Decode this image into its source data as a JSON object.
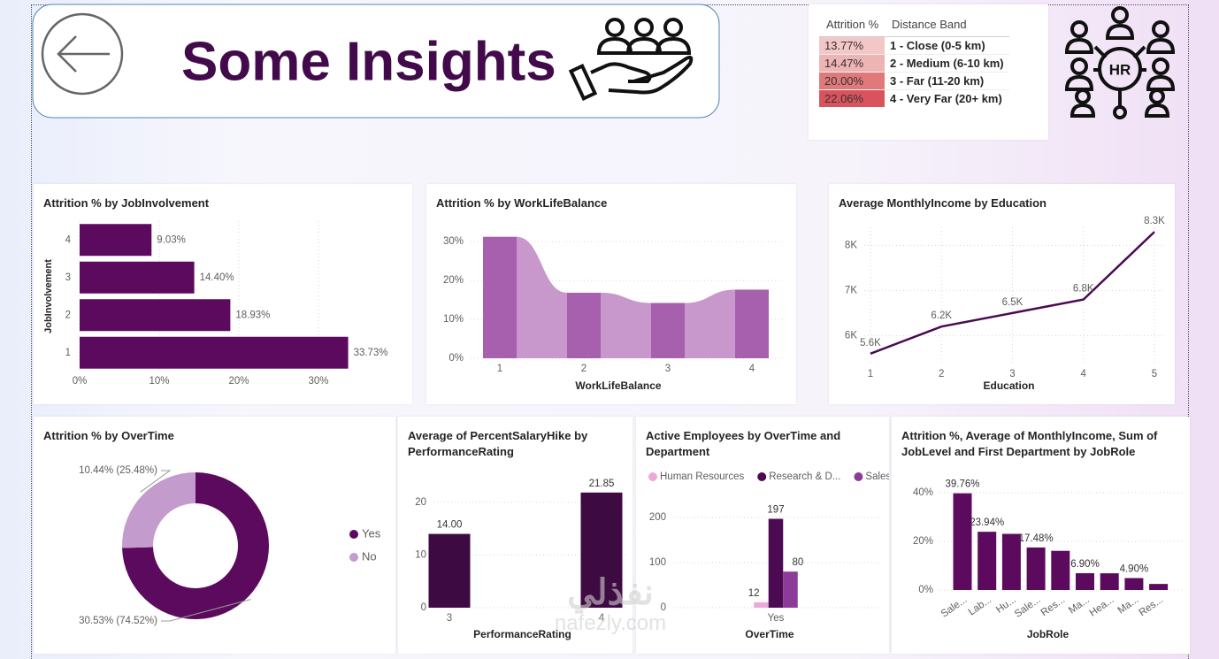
{
  "header": {
    "title": "Some Insights",
    "icon_text": "HR"
  },
  "table": {
    "columns": [
      "Attrition %",
      "Distance Band"
    ],
    "rows": [
      [
        "13.77%",
        "1 - Close (0-5 km)"
      ],
      [
        "14.47%",
        "2 - Medium (6-10 km)"
      ],
      [
        "20.00%",
        "3 - Far (11-20 km)"
      ],
      [
        "22.06%",
        "4 - Very Far (20+ km)"
      ]
    ],
    "row_colors": [
      "#f4c7c7",
      "#eeb3b3",
      "#e07a7a",
      "#d9535d"
    ]
  },
  "watermark": [
    "نفذلي",
    "nafezly.com"
  ],
  "chart_data": [
    {
      "type": "bar",
      "orientation": "horizontal",
      "title": "Attrition % by JobInvolvement",
      "y_label": "JobInvolvement",
      "categories": [
        "1",
        "2",
        "3",
        "4"
      ],
      "values": [
        33.73,
        18.93,
        14.4,
        9.03
      ],
      "value_labels": [
        "33.73%",
        "18.93%",
        "14.40%",
        "9.03%"
      ],
      "color": "#5c0a5e",
      "xlim": [
        0,
        40
      ],
      "xticks": [
        {
          "value": 0,
          "label": "0%"
        },
        {
          "value": 10,
          "label": "10%"
        },
        {
          "value": 20,
          "label": "20%"
        },
        {
          "value": 30,
          "label": "30%"
        }
      ],
      "grid": true
    },
    {
      "type": "ribbon",
      "title": "Attrition % by WorkLifeBalance",
      "x_label": "WorkLifeBalance",
      "categories": [
        "1",
        "2",
        "3",
        "4"
      ],
      "values": [
        31.25,
        16.86,
        14.22,
        17.65
      ],
      "color": "#a660ae",
      "ribbon_color": "#c897cb",
      "ylim": [
        0,
        33
      ],
      "yticks": [
        {
          "value": 0,
          "label": "0%"
        },
        {
          "value": 10,
          "label": "10%"
        },
        {
          "value": 20,
          "label": "20%"
        },
        {
          "value": 30,
          "label": "30%"
        }
      ],
      "grid": true
    },
    {
      "type": "line",
      "title": "Average MonthlyIncome by Education",
      "x_label": "Education",
      "categories": [
        "1",
        "2",
        "3",
        "4",
        "5"
      ],
      "values": [
        5600,
        6200,
        6500,
        6800,
        8300
      ],
      "value_labels": [
        "5.6K",
        "6.2K",
        "6.5K",
        "6.8K",
        "8.3K"
      ],
      "color": "#4a0a52",
      "ylim": [
        5400,
        8400
      ],
      "yticks": [
        {
          "value": 6000,
          "label": "6K"
        },
        {
          "value": 7000,
          "label": "7K"
        },
        {
          "value": 8000,
          "label": "8K"
        }
      ],
      "grid": true
    },
    {
      "type": "donut",
      "title": "Attrition % by OverTime",
      "categories": [
        "Yes",
        "No"
      ],
      "values": [
        74.52,
        25.48
      ],
      "value_labels": [
        "30.53% (74.52%)",
        "10.44% (25.48%)"
      ],
      "colors": [
        "#5c0a5e",
        "#c39bcd"
      ],
      "legend": "right"
    },
    {
      "type": "bar",
      "title": "Average of PercentSalaryHike by PerformanceRating",
      "x_label": "PerformanceRating",
      "categories": [
        "3",
        "4"
      ],
      "values": [
        14,
        21.85
      ],
      "value_labels": [
        "14.00",
        "21.85"
      ],
      "color": "#3e0a42",
      "ylim": [
        0,
        24
      ],
      "yticks": [
        0,
        10,
        20
      ],
      "grid": true
    },
    {
      "type": "bar",
      "title": "Active Employees by OverTime and Department",
      "x_label": "OverTime",
      "categories": [
        "Yes"
      ],
      "series": [
        {
          "name": "Human Resources",
          "color": "#eaa9d9",
          "values": [
            12
          ]
        },
        {
          "name": "Research & D...",
          "color": "#4b0a52",
          "values": [
            197
          ]
        },
        {
          "name": "Sales",
          "color": "#8d3b99",
          "values": [
            80
          ]
        }
      ],
      "ylim": [
        0,
        250
      ],
      "yticks": [
        0,
        100,
        200
      ],
      "grid": true,
      "legend": "top"
    },
    {
      "type": "bar",
      "title": "Attrition %, Average of MonthlyIncome, Sum of JobLevel and First Department by JobRole",
      "x_label": "JobRole",
      "categories": [
        "Sale...",
        "Lab...",
        "Hu...",
        "Sale...",
        "Res...",
        "Ma...",
        "Hea...",
        "Ma...",
        "Res..."
      ],
      "values": [
        39.76,
        23.94,
        23.08,
        17.48,
        16.1,
        6.9,
        6.87,
        4.9,
        2.5
      ],
      "value_labels": [
        "39.76%",
        "23.94%",
        null,
        "17.48%",
        null,
        "6.90%",
        null,
        "4.90%",
        null
      ],
      "color": "#5c0a5e",
      "ylim": [
        0,
        44
      ],
      "yticks": [
        {
          "value": 0,
          "label": "0%"
        },
        {
          "value": 20,
          "label": "20%"
        },
        {
          "value": 40,
          "label": "40%"
        }
      ],
      "grid": true
    }
  ]
}
